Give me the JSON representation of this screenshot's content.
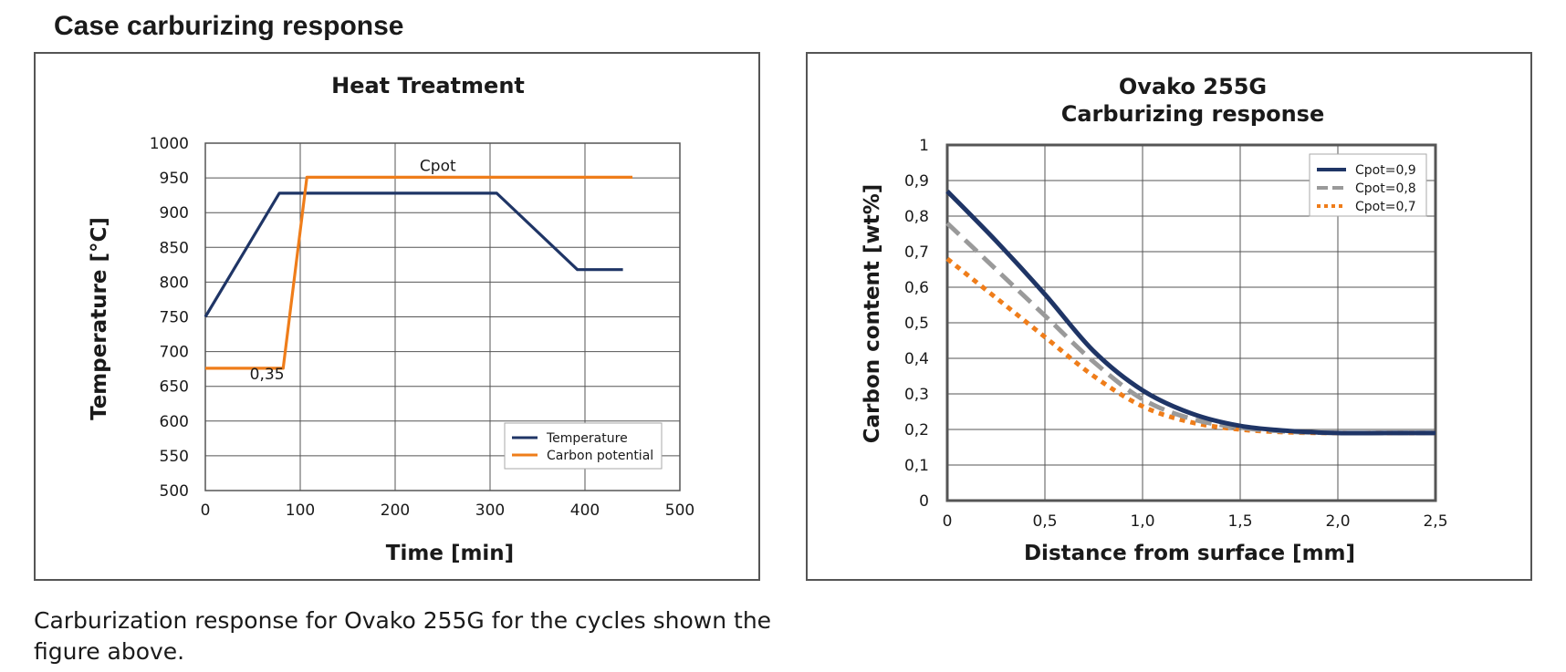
{
  "page": {
    "title": "Case carburizing response",
    "caption": "Carburization response for Ovako 255G for the cycles shown the figure above."
  },
  "colors": {
    "navy": "#1f3566",
    "orange": "#ef7d1a",
    "gray": "#9a9a9a",
    "grid": "#555555"
  },
  "chart_data": [
    {
      "type": "line",
      "title": "Heat Treatment",
      "xlabel": "Time [min]",
      "ylabel": "Temperature [°C]",
      "xlim": [
        0,
        500
      ],
      "ylim": [
        500,
        1000
      ],
      "x_ticks": [
        "0",
        "100",
        "200",
        "300",
        "400",
        "500"
      ],
      "y_ticks": [
        "500",
        "550",
        "600",
        "650",
        "700",
        "750",
        "800",
        "850",
        "900",
        "950",
        "1000"
      ],
      "grid": true,
      "legend_position": "bottom-right",
      "annotations": [
        {
          "text": "Cpot",
          "x": 245,
          "y": 960
        },
        {
          "text": "0,35",
          "x": 65,
          "y": 660
        }
      ],
      "series": [
        {
          "name": "Temperature",
          "color": "navy",
          "style": "solid",
          "x": [
            0,
            78,
            307,
            392,
            440
          ],
          "y": [
            750,
            928,
            928,
            818,
            818
          ]
        },
        {
          "name": "Carbon potential",
          "color": "orange",
          "style": "solid",
          "x": [
            0,
            82,
            107,
            450
          ],
          "y": [
            676,
            676,
            951,
            951
          ]
        }
      ]
    },
    {
      "type": "line",
      "title": "Ovako 255G\nCarburizing response",
      "xlabel": "Distance from surface [mm]",
      "ylabel": "Carbon content [wt%]",
      "xlim": [
        0,
        2.5
      ],
      "ylim": [
        0,
        1
      ],
      "x_ticks": [
        "0",
        "0,5",
        "1,0",
        "1,5",
        "2,0",
        "2,5"
      ],
      "y_ticks": [
        "0",
        "0,1",
        "0,2",
        "0,3",
        "0,4",
        "0,5",
        "0,6",
        "0,7",
        "0,8",
        "0,9",
        "1"
      ],
      "grid": true,
      "legend_position": "top-right",
      "series": [
        {
          "name": "Cpot=0,9",
          "color": "navy",
          "style": "solid",
          "x": [
            0,
            0.25,
            0.5,
            0.75,
            1.0,
            1.25,
            1.5,
            1.75,
            2.0,
            2.25,
            2.5
          ],
          "y": [
            0.87,
            0.73,
            0.58,
            0.42,
            0.31,
            0.245,
            0.21,
            0.196,
            0.19,
            0.19,
            0.19
          ]
        },
        {
          "name": "Cpot=0,8",
          "color": "gray",
          "style": "dashed",
          "x": [
            0,
            0.25,
            0.5,
            0.75,
            1.0,
            1.25,
            1.5,
            1.75,
            2.0,
            2.25,
            2.5
          ],
          "y": [
            0.78,
            0.65,
            0.52,
            0.39,
            0.285,
            0.23,
            0.205,
            0.194,
            0.19,
            0.19,
            0.19
          ]
        },
        {
          "name": "Cpot=0,7",
          "color": "orange",
          "style": "dotted",
          "x": [
            0,
            0.25,
            0.5,
            0.75,
            1.0,
            1.25,
            1.5,
            1.75,
            2.0,
            2.25,
            2.5
          ],
          "y": [
            0.68,
            0.57,
            0.46,
            0.35,
            0.265,
            0.22,
            0.2,
            0.192,
            0.19,
            0.19,
            0.19
          ]
        }
      ]
    }
  ]
}
